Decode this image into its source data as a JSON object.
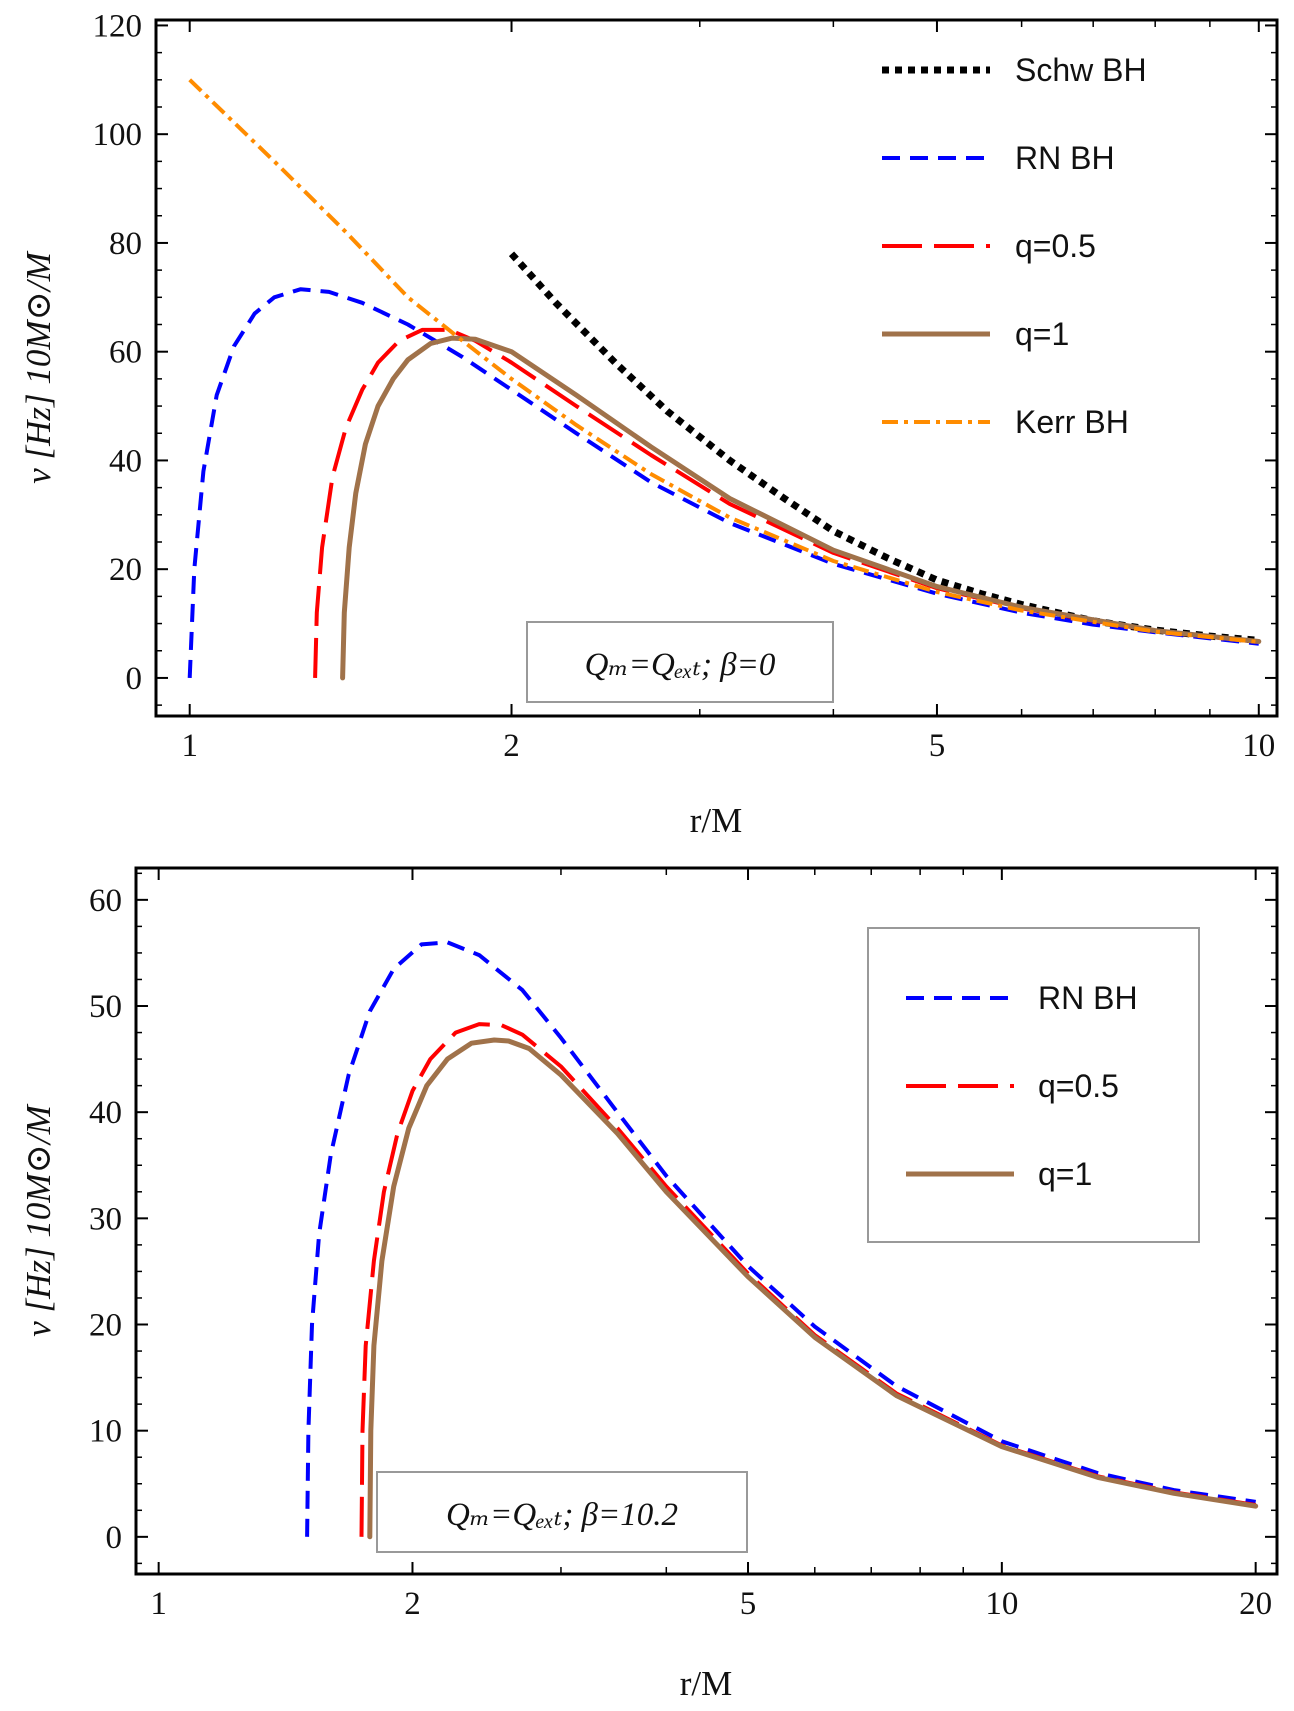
{
  "chart_data": [
    {
      "type": "line",
      "xscale": "log",
      "xlim": [
        0.93,
        10.4
      ],
      "ylim": [
        -7,
        121
      ],
      "xlabel": "r/M",
      "ylabel": "ν [Hz] 10M⊙/M",
      "xticks": [
        1,
        2,
        5,
        10
      ],
      "yticks": [
        0,
        20,
        40,
        60,
        80,
        100,
        120
      ],
      "annotation": "Qₘ=Qₑₓₜ; β=0",
      "legend": [
        "Schw BH",
        "RN BH",
        "q=0.5",
        "q=1",
        "Kerr BH"
      ],
      "series": [
        {
          "name": "Schw BH",
          "color": "#000000",
          "style": "dotted",
          "x": [
            2.0,
            2.2,
            2.5,
            2.8,
            3.2,
            3.6,
            4.0,
            4.5,
            5.0,
            5.5,
            6.0,
            7.0,
            8.0,
            9.0,
            10.0
          ],
          "y": [
            78,
            69,
            58,
            49,
            40,
            33,
            27,
            22,
            18,
            15.5,
            13.5,
            10.5,
            8.8,
            7.7,
            6.9
          ]
        },
        {
          "name": "RN BH",
          "color": "#0000ff",
          "style": "dashed",
          "x": [
            1.0,
            1.01,
            1.03,
            1.06,
            1.1,
            1.15,
            1.2,
            1.27,
            1.35,
            1.45,
            1.6,
            1.8,
            2.0,
            2.3,
            2.7,
            3.2,
            4.0,
            5.0,
            6.0,
            7.0,
            8.0,
            10.0
          ],
          "y": [
            0,
            20,
            38,
            52,
            61,
            67,
            70,
            71.5,
            71,
            69,
            65,
            59,
            53,
            45,
            36,
            28.5,
            21,
            15.5,
            12,
            9.8,
            8.4,
            6.3
          ]
        },
        {
          "name": "q=0.5",
          "color": "#ff0000",
          "style": "longdash",
          "x": [
            1.31,
            1.315,
            1.33,
            1.36,
            1.4,
            1.45,
            1.5,
            1.57,
            1.65,
            1.75,
            1.85,
            2.0,
            2.3,
            2.7,
            3.2,
            4.0,
            5.0,
            6.0,
            8.0,
            10.0
          ],
          "y": [
            0,
            12,
            24,
            37,
            46,
            53,
            58,
            62,
            64,
            64,
            62,
            58,
            50,
            41,
            32,
            23,
            16.5,
            12.8,
            8.6,
            6.6
          ]
        },
        {
          "name": "q=1",
          "color": "#a0724a",
          "style": "solid",
          "x": [
            1.39,
            1.395,
            1.41,
            1.43,
            1.46,
            1.5,
            1.55,
            1.6,
            1.68,
            1.76,
            1.85,
            2.0,
            2.3,
            2.7,
            3.2,
            4.0,
            5.0,
            6.0,
            8.0,
            10.0
          ],
          "y": [
            0,
            12,
            24,
            34,
            43,
            50,
            55,
            58.5,
            61.5,
            62.5,
            62.3,
            60,
            52,
            42.5,
            33,
            23.5,
            16.8,
            13,
            8.7,
            6.7
          ]
        },
        {
          "name": "Kerr BH",
          "color": "#ff8c00",
          "style": "dashdot",
          "x": [
            1.0,
            1.2,
            1.4,
            1.6,
            1.8,
            2.0,
            2.3,
            2.7,
            3.2,
            4.0,
            5.0,
            6.0,
            8.0,
            10.0
          ],
          "y": [
            110,
            95,
            82,
            70,
            62,
            55,
            46.5,
            37.5,
            29.5,
            21.5,
            15.8,
            12.4,
            8.5,
            6.6
          ]
        }
      ]
    },
    {
      "type": "line",
      "xscale": "log",
      "xlim": [
        0.94,
        21.2
      ],
      "ylim": [
        -3.5,
        63
      ],
      "xlabel": "r/M",
      "ylabel": "ν [Hz] 10M⊙/M",
      "xticks": [
        1,
        2,
        5,
        10,
        20
      ],
      "yticks": [
        0,
        10,
        20,
        30,
        40,
        50,
        60
      ],
      "annotation": "Qₘ=Qₑₓₜ; β=10.2",
      "legend": [
        "RN BH",
        "q=0.5",
        "q=1"
      ],
      "series": [
        {
          "name": "RN BH",
          "color": "#0000ff",
          "style": "dashed",
          "x": [
            1.5,
            1.505,
            1.52,
            1.55,
            1.6,
            1.68,
            1.78,
            1.9,
            2.05,
            2.2,
            2.4,
            2.7,
            3.0,
            3.5,
            4.0,
            5.0,
            6.0,
            7.5,
            10.0,
            13.0,
            16.0,
            20.0
          ],
          "y": [
            0,
            10,
            20,
            28.5,
            36,
            43.5,
            49.5,
            53.5,
            55.8,
            56,
            54.8,
            51.5,
            47,
            40,
            34,
            25.5,
            19.8,
            14.2,
            9,
            6,
            4.4,
            3.3
          ]
        },
        {
          "name": "q=0.5",
          "color": "#ff0000",
          "style": "longdash",
          "x": [
            1.74,
            1.745,
            1.76,
            1.8,
            1.85,
            1.92,
            2.0,
            2.1,
            2.25,
            2.4,
            2.55,
            2.7,
            3.0,
            3.5,
            4.0,
            5.0,
            6.0,
            7.5,
            10.0,
            13.0,
            16.0,
            20.0
          ],
          "y": [
            0,
            10,
            18,
            26,
            32.5,
            38,
            42,
            45,
            47.5,
            48.3,
            48.2,
            47.3,
            44.3,
            38.5,
            33,
            24.8,
            19,
            13.5,
            8.6,
            5.7,
            4.2,
            3.0
          ]
        },
        {
          "name": "q=1",
          "color": "#a0724a",
          "style": "solid",
          "x": [
            1.78,
            1.785,
            1.8,
            1.84,
            1.9,
            1.98,
            2.08,
            2.2,
            2.35,
            2.5,
            2.6,
            2.75,
            3.0,
            3.5,
            4.0,
            5.0,
            6.0,
            7.5,
            10.0,
            13.0,
            16.0,
            20.0
          ],
          "y": [
            0,
            10,
            18,
            26,
            33,
            38.5,
            42.5,
            45,
            46.5,
            46.8,
            46.7,
            46,
            43.5,
            38,
            32.5,
            24.5,
            18.8,
            13.3,
            8.5,
            5.6,
            4.1,
            2.9
          ]
        }
      ]
    }
  ]
}
